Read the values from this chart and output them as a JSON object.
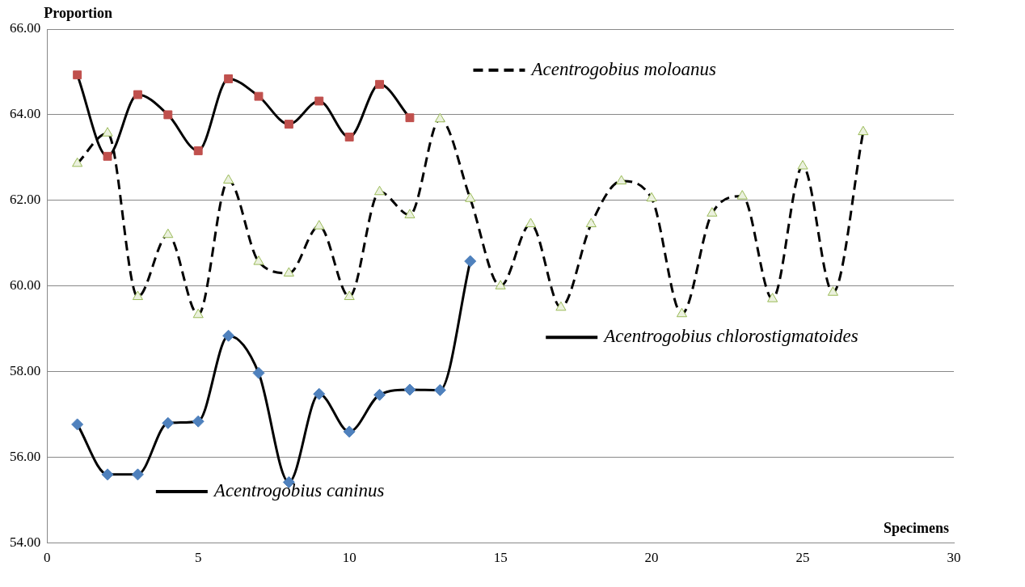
{
  "chart_data": {
    "type": "line",
    "xlabel": "Specimens",
    "ylabel": "Proportion",
    "xlim": [
      0,
      30
    ],
    "xticks": [
      0,
      5,
      10,
      15,
      20,
      25,
      30
    ],
    "ylim": [
      54,
      66
    ],
    "yticks": [
      {
        "value": 54,
        "label": "54.00"
      },
      {
        "value": 56,
        "label": "56.00"
      },
      {
        "value": 58,
        "label": "58.00"
      },
      {
        "value": 60,
        "label": "60.00"
      },
      {
        "value": 62,
        "label": "62.00"
      },
      {
        "value": 64,
        "label": "64.00"
      },
      {
        "value": 66,
        "label": "66.00"
      }
    ],
    "grid": "y",
    "legend": "right",
    "series": [
      {
        "name": "Acentrogobius caninus",
        "color": "#000000",
        "colors": [
          "#4f81bd",
          "#4f81bd",
          "#4f81bd",
          "#4f81bd",
          "#4f81bd",
          "#4f81bd",
          "#4f81bd",
          "#4f81bd",
          "#4f81bd",
          "#4f81bd",
          "#4f81bd",
          "#4f81bd",
          "#4f81bd",
          "#4f81bd"
        ],
        "marker": "diamond",
        "line_style": "solid",
        "x": [
          1,
          2,
          3,
          4,
          5,
          6,
          7,
          8,
          9,
          10,
          11,
          12,
          13,
          14
        ],
        "values": [
          56.77,
          55.6,
          55.6,
          56.8,
          56.84,
          58.84,
          57.97,
          55.42,
          57.48,
          56.6,
          57.46,
          57.58,
          57.57,
          60.58
        ]
      },
      {
        "name": "Acentrogobius moloanus",
        "color": "#000000",
        "colors": [
          "#ebf1de",
          "#ebf1de",
          "#ebf1de",
          "#ebf1de",
          "#ebf1de",
          "#ebf1de",
          "#ebf1de",
          "#ebf1de",
          "#ebf1de",
          "#ebf1de",
          "#ebf1de",
          "#ebf1de",
          "#ebf1de",
          "#ebf1de",
          "#ebf1de",
          "#ebf1de",
          "#ebf1de",
          "#ebf1de",
          "#ebf1de",
          "#ebf1de",
          "#ebf1de",
          "#ebf1de",
          "#ebf1de",
          "#ebf1de",
          "#ebf1de",
          "#ebf1de",
          "#ebf1de"
        ],
        "marker": "triangle",
        "line_style": "dashed",
        "x": [
          1,
          2,
          3,
          4,
          5,
          6,
          7,
          8,
          9,
          10,
          11,
          12,
          13,
          14,
          15,
          16,
          17,
          18,
          19,
          20,
          21,
          22,
          23,
          24,
          25,
          26,
          27
        ],
        "values": [
          62.86,
          63.57,
          59.75,
          61.2,
          59.33,
          62.47,
          60.57,
          60.3,
          61.4,
          59.75,
          62.2,
          61.66,
          63.9,
          62.04,
          60.0,
          61.45,
          59.5,
          61.45,
          62.45,
          62.05,
          59.35,
          61.7,
          62.1,
          59.7,
          62.8,
          59.85,
          63.6
        ]
      },
      {
        "name": "Acentrogobius chlorostigmatoides",
        "color": "#000000",
        "colors": [
          "#c0504d",
          "#c0504d",
          "#c0504d",
          "#c0504d",
          "#c0504d",
          "#c0504d",
          "#c0504d",
          "#c0504d",
          "#c0504d",
          "#c0504d",
          "#c0504d",
          "#c0504d"
        ],
        "marker": "square",
        "line_style": "solid",
        "x": [
          1,
          2,
          3,
          4,
          5,
          6,
          7,
          8,
          9,
          10,
          11,
          12
        ],
        "values": [
          64.93,
          63.03,
          64.47,
          64.0,
          63.16,
          64.84,
          64.43,
          63.78,
          64.32,
          63.48,
          64.71,
          63.93
        ]
      }
    ]
  }
}
